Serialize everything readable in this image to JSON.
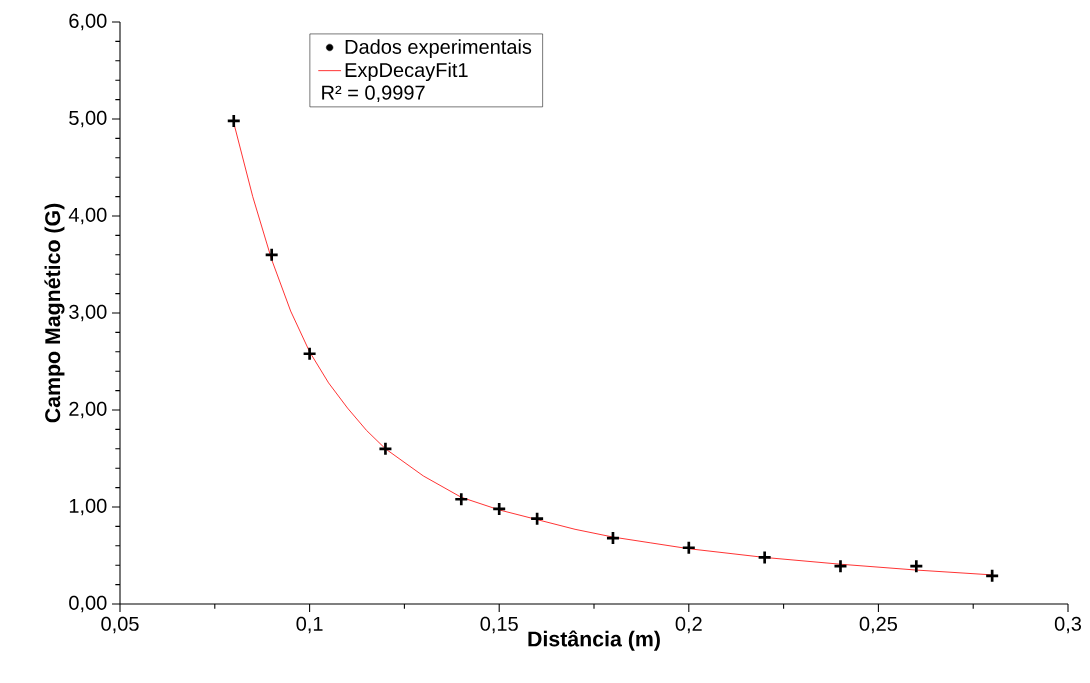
{
  "chart_data": {
    "type": "scatter",
    "xlabel": "Distância (m)",
    "ylabel": "Campo Magnético (G)",
    "xlim": [
      0.05,
      0.3
    ],
    "ylim": [
      0,
      6
    ],
    "xticks": [
      {
        "value": 0.05,
        "label": "0,05"
      },
      {
        "value": 0.1,
        "label": "0,1"
      },
      {
        "value": 0.15,
        "label": "0,15"
      },
      {
        "value": 0.2,
        "label": "0,2"
      },
      {
        "value": 0.25,
        "label": "0,25"
      },
      {
        "value": 0.3,
        "label": "0,3"
      }
    ],
    "yticks": [
      {
        "value": 0,
        "label": "0,00"
      },
      {
        "value": 1,
        "label": "1,00"
      },
      {
        "value": 2,
        "label": "2,00"
      },
      {
        "value": 3,
        "label": "3,00"
      },
      {
        "value": 4,
        "label": "4,00"
      },
      {
        "value": 5,
        "label": "5,00"
      },
      {
        "value": 6,
        "label": "6,00"
      }
    ],
    "marker": "cross",
    "legend": "top",
    "grid": false,
    "annotations": [
      "R² = 0,9997"
    ],
    "series": [
      {
        "name": "Dados experimentais",
        "color": "#000000",
        "x": [
          0.08,
          0.09,
          0.1,
          0.12,
          0.14,
          0.15,
          0.16,
          0.18,
          0.2,
          0.22,
          0.24,
          0.26,
          0.28
        ],
        "values": [
          4.98,
          3.6,
          2.58,
          1.6,
          1.08,
          0.98,
          0.88,
          0.68,
          0.58,
          0.48,
          0.39,
          0.39,
          0.29
        ]
      },
      {
        "name": "ExpDecayFit1",
        "type": "line",
        "marker": "none",
        "color": "#ff0000",
        "x": [
          0.08,
          0.085,
          0.09,
          0.095,
          0.1,
          0.105,
          0.11,
          0.115,
          0.12,
          0.13,
          0.14,
          0.15,
          0.16,
          0.17,
          0.18,
          0.19,
          0.2,
          0.22,
          0.24,
          0.26,
          0.28
        ],
        "values": [
          4.96,
          4.2,
          3.55,
          3.02,
          2.6,
          2.28,
          2.02,
          1.79,
          1.6,
          1.32,
          1.1,
          0.97,
          0.87,
          0.77,
          0.69,
          0.63,
          0.57,
          0.48,
          0.41,
          0.35,
          0.3
        ]
      }
    ]
  }
}
